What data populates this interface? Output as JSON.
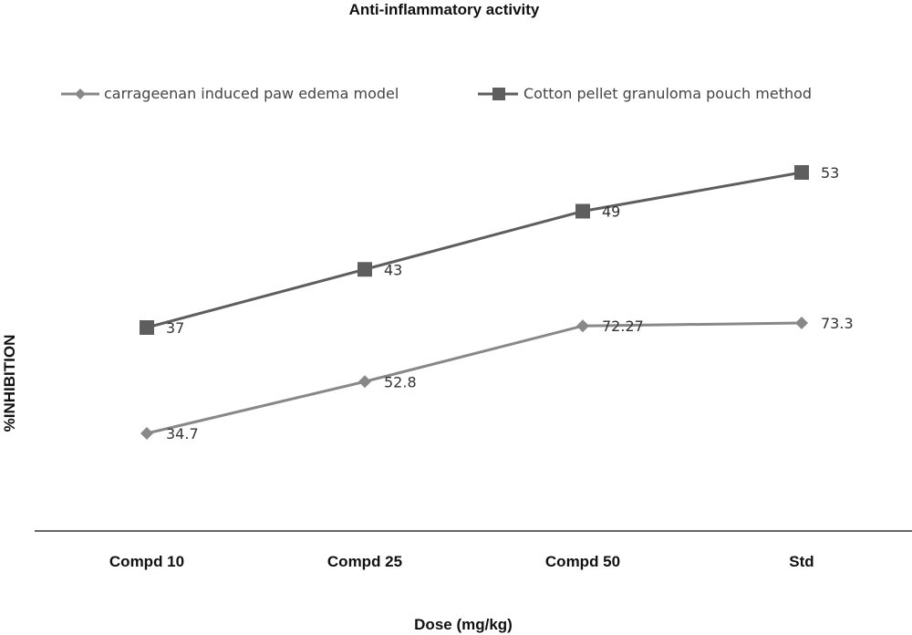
{
  "chart_data": {
    "type": "line",
    "title": "Anti-inflammatory activity",
    "xlabel": "Dose (mg/kg)",
    "ylabel": "%INHIBITION",
    "categories": [
      "Compd 10",
      "Compd 25",
      "Compd 50",
      "Std"
    ],
    "legend_position": "top",
    "grid": false,
    "series": [
      {
        "name": "carrageenan induced paw edema model",
        "marker": "diamond",
        "color": "#888888",
        "values": [
          34.7,
          52.8,
          72.27,
          73.3
        ],
        "labels": [
          "34.7",
          "52.8",
          "72.27",
          "73.3"
        ]
      },
      {
        "name": "Cotton pellet granuloma pouch method",
        "marker": "square",
        "color": "#5e5e5e",
        "values": [
          37,
          43,
          49,
          53
        ],
        "labels": [
          "37",
          "43",
          "49",
          "53"
        ]
      }
    ]
  }
}
